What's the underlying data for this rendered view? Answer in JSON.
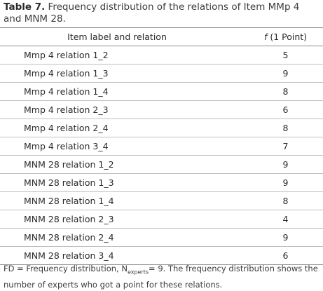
{
  "caption": {
    "label": "Table 7.",
    "text": "Frequency distribution of the relations of Item MMp 4 and MNM 28."
  },
  "table": {
    "header": {
      "col1": "Item label and relation",
      "col2_symbol": "f",
      "col2_rest": "(1 Point)"
    },
    "rows": [
      {
        "relation": "Mmp 4 relation 1_2",
        "value": "5"
      },
      {
        "relation": "Mmp 4 relation 1_3",
        "value": "9"
      },
      {
        "relation": "Mmp 4 relation 1_4",
        "value": "8"
      },
      {
        "relation": "Mmp 4 relation 2_3",
        "value": "6"
      },
      {
        "relation": "Mmp 4 relation 2_4",
        "value": "8"
      },
      {
        "relation": "Mmp 4 relation 3_4",
        "value": "7"
      },
      {
        "relation": "MNM 28 relation 1_2",
        "value": "9"
      },
      {
        "relation": "MNM 28 relation 1_3",
        "value": "9"
      },
      {
        "relation": "MNM 28 relation 1_4",
        "value": "8"
      },
      {
        "relation": "MNM 28 relation 2_3",
        "value": "4"
      },
      {
        "relation": "MNM 28 relation 2_4",
        "value": "9"
      },
      {
        "relation": "MNM 28 relation 3_4",
        "value": "6"
      }
    ]
  },
  "footnote": {
    "part1": "FD = Frequency distribution, N",
    "sub": "experts",
    "part2": "= 9. The frequency distribution shows the number of experts who got a point for these relations."
  }
}
